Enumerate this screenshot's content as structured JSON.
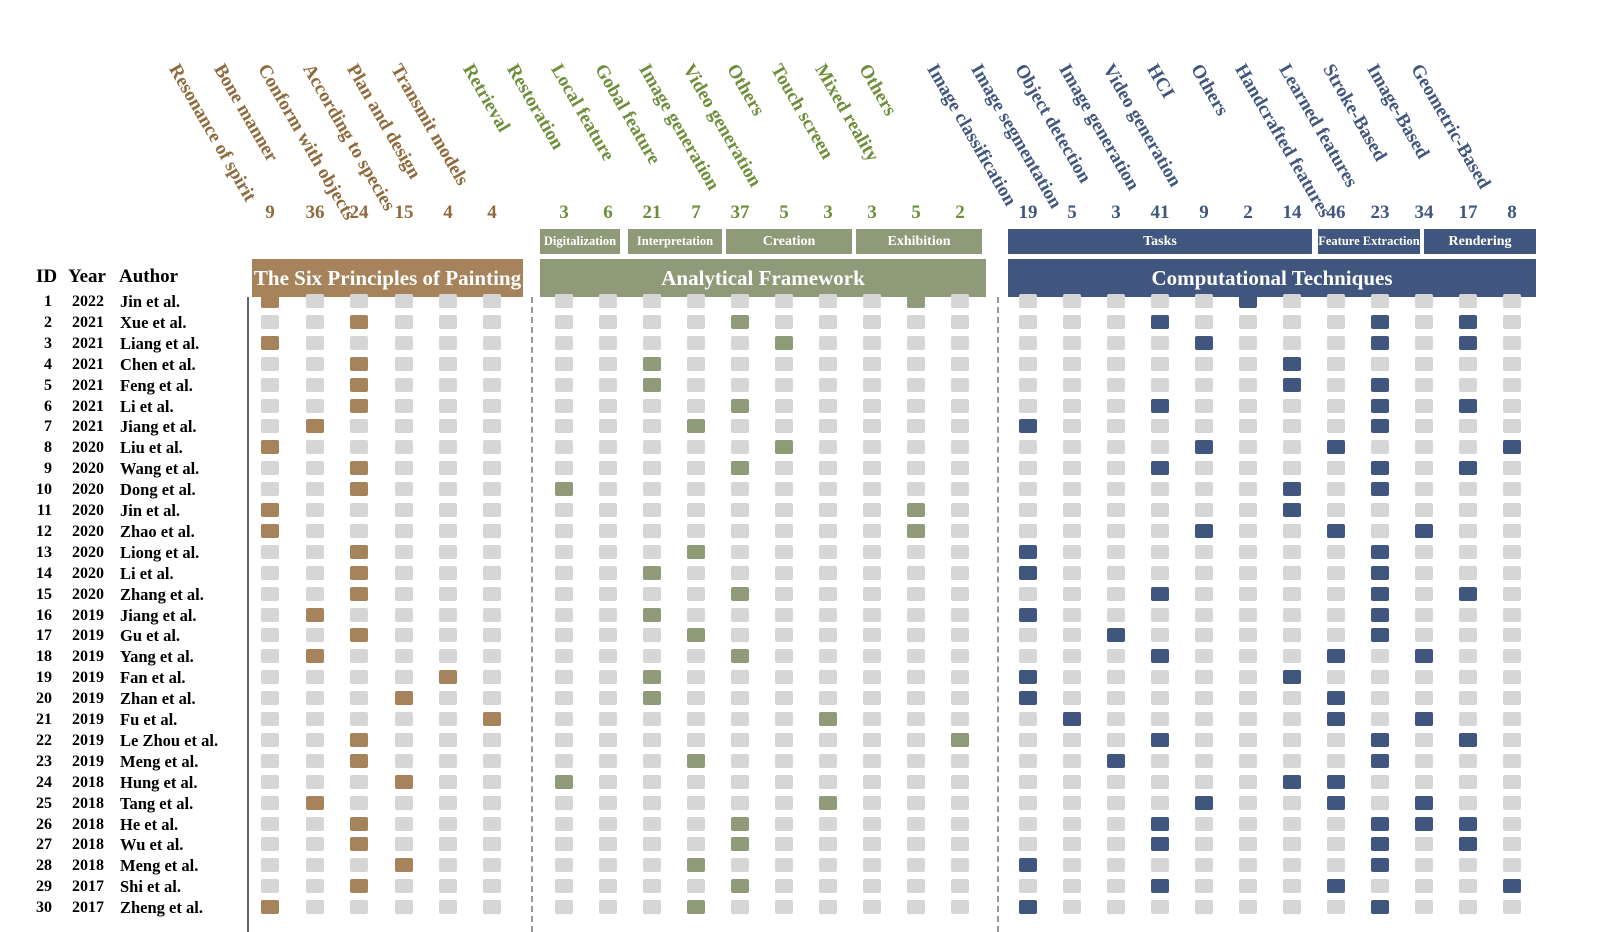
{
  "header": {
    "id": "ID",
    "year": "Year",
    "author": "Author"
  },
  "colors": {
    "brown": "#A6835A",
    "green": "#8E9A78",
    "blue": "#41567F",
    "empty": "#D6D6D6",
    "brown_text": "#8F6A3C",
    "green_text": "#6E8E3A",
    "blue_text": "#41567F"
  },
  "groups": [
    {
      "key": "six",
      "title": "The Six Principles of Painting",
      "color": "brown",
      "subgroups": [],
      "columns": [
        {
          "label": "Resonance of spirit",
          "count": "9"
        },
        {
          "label": "Bone manner",
          "count": "36"
        },
        {
          "label": "Conform with objects",
          "count": "24"
        },
        {
          "label": "According to species",
          "count": "15"
        },
        {
          "label": "Plan and design",
          "count": "4"
        },
        {
          "label": "Transmit models",
          "count": "4"
        }
      ]
    },
    {
      "key": "ana",
      "title": "Analytical Framework",
      "color": "green",
      "subgroups": [
        {
          "label": "Digitalization",
          "span": 1
        },
        {
          "label": "Interpretation",
          "span": 2
        },
        {
          "label": "Creation",
          "span": 3
        },
        {
          "label": "Exhibition",
          "span": 3
        }
      ],
      "columns": [
        {
          "label": "Retrieval",
          "count": "3"
        },
        {
          "label": "Restoration",
          "count": "6"
        },
        {
          "label": "Local feature",
          "count": "21"
        },
        {
          "label": "Gobal feature",
          "count": "7"
        },
        {
          "label": "Image generation",
          "count": "37"
        },
        {
          "label": "Video generation",
          "count": "5"
        },
        {
          "label": "Others",
          "count": "3"
        },
        {
          "label": "Touch screen",
          "count": "3"
        },
        {
          "label": "Mixed reality",
          "count": "5"
        },
        {
          "label": "Others",
          "count": "2"
        }
      ]
    },
    {
      "key": "comp",
      "title": "Computational Techniques",
      "color": "blue",
      "subgroups": [
        {
          "label": "Tasks",
          "span": 7
        },
        {
          "label": "Feature Extraction",
          "span": 2
        },
        {
          "label": "Rendering",
          "span": 3
        }
      ],
      "columns": [
        {
          "label": "Image classification",
          "count": "19"
        },
        {
          "label": "Image segmentation",
          "count": "5"
        },
        {
          "label": "Object detection",
          "count": "3"
        },
        {
          "label": "Image generation",
          "count": "41"
        },
        {
          "label": "Video generation",
          "count": "9"
        },
        {
          "label": "HCI",
          "count": "2"
        },
        {
          "label": "Others",
          "count": "14"
        },
        {
          "label": "Handcrafted features",
          "count": "46"
        },
        {
          "label": "Learned features",
          "count": "23"
        },
        {
          "label": "Stroke-Based",
          "count": "34"
        },
        {
          "label": "Image-Based",
          "count": "17"
        },
        {
          "label": "Geometric-Based",
          "count": "8"
        }
      ]
    }
  ],
  "rows": [
    {
      "id": "1",
      "year": "2022",
      "author": "Jin et al.",
      "six": [
        0
      ],
      "ana": [
        8
      ],
      "comp": [
        5
      ]
    },
    {
      "id": "2",
      "year": "2021",
      "author": "Xue et al.",
      "six": [
        2
      ],
      "ana": [
        4
      ],
      "comp": [
        3,
        8,
        10
      ]
    },
    {
      "id": "3",
      "year": "2021",
      "author": "Liang et al.",
      "six": [
        0
      ],
      "ana": [
        5
      ],
      "comp": [
        4,
        8,
        10
      ]
    },
    {
      "id": "4",
      "year": "2021",
      "author": "Chen et al.",
      "six": [
        2
      ],
      "ana": [
        2
      ],
      "comp": [
        6
      ]
    },
    {
      "id": "5",
      "year": "2021",
      "author": "Feng et al.",
      "six": [
        2
      ],
      "ana": [
        2
      ],
      "comp": [
        6,
        8
      ]
    },
    {
      "id": "6",
      "year": "2021",
      "author": "Li  et al.",
      "six": [
        2
      ],
      "ana": [
        4
      ],
      "comp": [
        3,
        8,
        10
      ]
    },
    {
      "id": "7",
      "year": "2021",
      "author": "Jiang et al.",
      "six": [
        1
      ],
      "ana": [
        3
      ],
      "comp": [
        0,
        8
      ]
    },
    {
      "id": "8",
      "year": "2020",
      "author": "Liu et al.",
      "six": [
        0
      ],
      "ana": [
        5
      ],
      "comp": [
        4,
        7,
        11
      ]
    },
    {
      "id": "9",
      "year": "2020",
      "author": "Wang et al.",
      "six": [
        2
      ],
      "ana": [
        4
      ],
      "comp": [
        3,
        8,
        10
      ]
    },
    {
      "id": "10",
      "year": "2020",
      "author": "Dong et al.",
      "six": [
        2
      ],
      "ana": [
        0
      ],
      "comp": [
        6,
        8
      ]
    },
    {
      "id": "11",
      "year": "2020",
      "author": "Jin et al.",
      "six": [
        0
      ],
      "ana": [
        8
      ],
      "comp": [
        6
      ]
    },
    {
      "id": "12",
      "year": "2020",
      "author": "Zhao et al.",
      "six": [
        0
      ],
      "ana": [
        8
      ],
      "comp": [
        4,
        7,
        9
      ]
    },
    {
      "id": "13",
      "year": "2020",
      "author": "Liong et al.",
      "six": [
        2
      ],
      "ana": [
        3
      ],
      "comp": [
        0,
        8
      ]
    },
    {
      "id": "14",
      "year": "2020",
      "author": "Li et al.",
      "six": [
        2
      ],
      "ana": [
        2
      ],
      "comp": [
        0,
        8
      ]
    },
    {
      "id": "15",
      "year": "2020",
      "author": "Zhang et al.",
      "six": [
        2
      ],
      "ana": [
        4
      ],
      "comp": [
        3,
        8,
        10
      ]
    },
    {
      "id": "16",
      "year": "2019",
      "author": "Jiang et al.",
      "six": [
        1
      ],
      "ana": [
        2
      ],
      "comp": [
        0,
        8
      ]
    },
    {
      "id": "17",
      "year": "2019",
      "author": "Gu et al.",
      "six": [
        2
      ],
      "ana": [
        3
      ],
      "comp": [
        2,
        8
      ]
    },
    {
      "id": "18",
      "year": "2019",
      "author": "Yang et al.",
      "six": [
        1
      ],
      "ana": [
        4
      ],
      "comp": [
        3,
        7,
        9
      ]
    },
    {
      "id": "19",
      "year": "2019",
      "author": "Fan et al.",
      "six": [
        4
      ],
      "ana": [
        2
      ],
      "comp": [
        0,
        6
      ]
    },
    {
      "id": "20",
      "year": "2019",
      "author": "Zhan et al.",
      "six": [
        3
      ],
      "ana": [
        2
      ],
      "comp": [
        0,
        7
      ]
    },
    {
      "id": "21",
      "year": "2019",
      "author": "Fu et al.",
      "six": [
        5
      ],
      "ana": [
        6
      ],
      "comp": [
        1,
        7,
        9
      ]
    },
    {
      "id": "22",
      "year": "2019",
      "author": "Le Zhou et al.",
      "six": [
        2
      ],
      "ana": [
        9
      ],
      "comp": [
        3,
        8,
        10
      ]
    },
    {
      "id": "23",
      "year": "2019",
      "author": "Meng et al.",
      "six": [
        2
      ],
      "ana": [
        3
      ],
      "comp": [
        2,
        8
      ]
    },
    {
      "id": "24",
      "year": "2018",
      "author": "Hung et al.",
      "six": [
        3
      ],
      "ana": [
        0
      ],
      "comp": [
        6,
        7
      ]
    },
    {
      "id": "25",
      "year": "2018",
      "author": "Tang et al.",
      "six": [
        1
      ],
      "ana": [
        6
      ],
      "comp": [
        4,
        7,
        9
      ]
    },
    {
      "id": "26",
      "year": "2018",
      "author": "He et al.",
      "six": [
        2
      ],
      "ana": [
        4
      ],
      "comp": [
        3,
        8,
        9,
        10
      ]
    },
    {
      "id": "27",
      "year": "2018",
      "author": "Wu et al.",
      "six": [
        2
      ],
      "ana": [
        4
      ],
      "comp": [
        3,
        8,
        10
      ]
    },
    {
      "id": "28",
      "year": "2018",
      "author": "Meng et al.",
      "six": [
        3
      ],
      "ana": [
        3
      ],
      "comp": [
        0,
        8
      ]
    },
    {
      "id": "29",
      "year": "2017",
      "author": "Shi et al.",
      "six": [
        2
      ],
      "ana": [
        4
      ],
      "comp": [
        3,
        7,
        11
      ]
    },
    {
      "id": "30",
      "year": "2017",
      "author": "Zheng et al.",
      "six": [
        0
      ],
      "ana": [
        3
      ],
      "comp": [
        0,
        8
      ]
    }
  ]
}
